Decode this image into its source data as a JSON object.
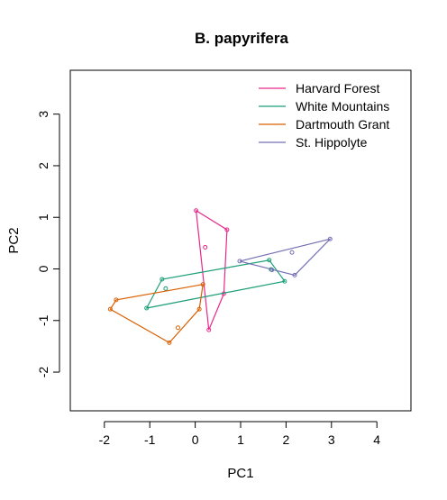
{
  "chart_data": {
    "type": "scatter",
    "title": "B. papyrifera",
    "xlabel": "PC1",
    "ylabel": "PC2",
    "xlim": [
      -2.75,
      4.75
    ],
    "ylim": [
      -2.75,
      3.85
    ],
    "xticks": [
      -2,
      -1,
      0,
      1,
      2,
      3,
      4
    ],
    "yticks": [
      -2,
      -1,
      0,
      1,
      2,
      3
    ],
    "legend_position": "top-right",
    "series": [
      {
        "name": "Harvard Forest",
        "color": "#E7298A",
        "points": [
          [
            0.02,
            1.13
          ],
          [
            0.22,
            0.42
          ],
          [
            0.7,
            0.76
          ],
          [
            0.63,
            -0.48
          ],
          [
            0.3,
            -1.18
          ]
        ],
        "hull": [
          [
            0.02,
            1.13
          ],
          [
            0.7,
            0.76
          ],
          [
            0.63,
            -0.48
          ],
          [
            0.3,
            -1.18
          ]
        ]
      },
      {
        "name": "White Mountains",
        "color": "#1B9E77",
        "points": [
          [
            1.63,
            0.17
          ],
          [
            1.97,
            -0.24
          ],
          [
            1.67,
            -0.01
          ],
          [
            -1.07,
            -0.76
          ],
          [
            -0.65,
            -0.38
          ],
          [
            -0.73,
            -0.2
          ]
        ],
        "hull": [
          [
            1.63,
            0.17
          ],
          [
            1.97,
            -0.24
          ],
          [
            -1.07,
            -0.76
          ],
          [
            -0.73,
            -0.2
          ]
        ]
      },
      {
        "name": "Dartmouth Grant",
        "color": "#D95F02",
        "points": [
          [
            0.17,
            -0.3
          ],
          [
            0.09,
            -0.78
          ],
          [
            -0.38,
            -1.14
          ],
          [
            -0.57,
            -1.43
          ],
          [
            -1.87,
            -0.78
          ],
          [
            -1.74,
            -0.6
          ]
        ],
        "hull": [
          [
            0.17,
            -0.3
          ],
          [
            0.09,
            -0.78
          ],
          [
            -0.57,
            -1.43
          ],
          [
            -1.87,
            -0.78
          ],
          [
            -1.74,
            -0.6
          ]
        ]
      },
      {
        "name": "St. Hippolyte",
        "color": "#7570B3",
        "points": [
          [
            0.98,
            0.15
          ],
          [
            1.69,
            -0.02
          ],
          [
            2.19,
            -0.12
          ],
          [
            2.97,
            0.58
          ],
          [
            2.13,
            0.32
          ]
        ],
        "hull": [
          [
            0.98,
            0.15
          ],
          [
            2.19,
            -0.12
          ],
          [
            2.97,
            0.58
          ]
        ]
      }
    ]
  }
}
